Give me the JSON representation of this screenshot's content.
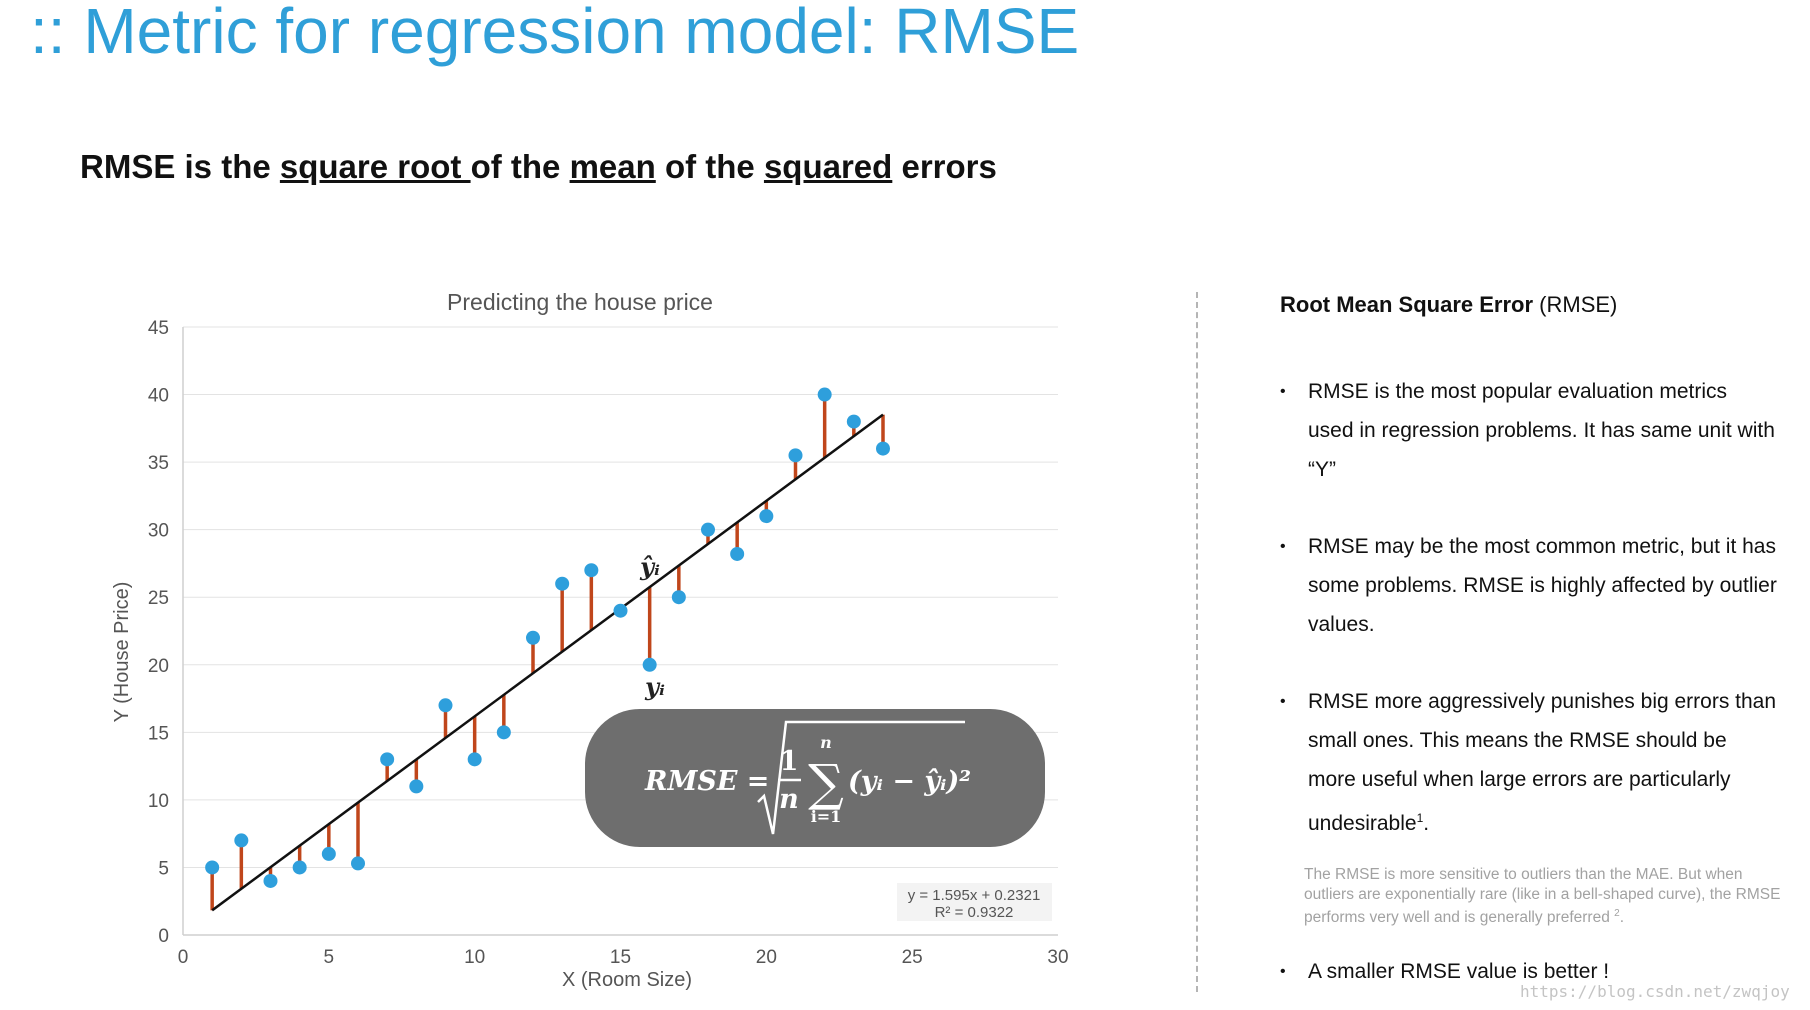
{
  "slide": {
    "title": ":: Metric for regression model: RMSE",
    "subtitle": {
      "part1": "RMSE is the ",
      "square_root": "square root ",
      "part2": "of the ",
      "mean": "mean",
      "part3": " of the ",
      "squared": "squared",
      "part4": " errors"
    }
  },
  "formula": {
    "text": "RMSE = √( (1/n) Σ_{i=1}^{n} (y_i − ŷ_i)² )",
    "lhs": "RMSE =",
    "numerator": "1",
    "denominator": "n",
    "sum_upper": "n",
    "sum_lower": "i=1",
    "body": "(yᵢ − ŷᵢ)²",
    "label_y_hat": "ŷᵢ",
    "label_y": "yᵢ"
  },
  "chart_data": {
    "type": "scatter",
    "title": "Predicting the house price",
    "xlabel": "X (Room Size)",
    "ylabel": "Y (House Price)",
    "xlim": [
      0,
      30
    ],
    "ylim": [
      0,
      45
    ],
    "xticks": [
      0,
      5,
      10,
      15,
      20,
      25,
      30
    ],
    "yticks": [
      0,
      5,
      10,
      15,
      20,
      25,
      30,
      35,
      40,
      45
    ],
    "grid": "horizontal",
    "series": [
      {
        "x": [
          1,
          2,
          3,
          4,
          5,
          6,
          7,
          8,
          9,
          10,
          11,
          12,
          13,
          14,
          15,
          16,
          17,
          18,
          19,
          20,
          21,
          22,
          23,
          24
        ],
        "y": [
          5,
          7,
          4,
          5,
          6,
          5.3,
          13,
          11,
          17,
          13,
          15,
          22,
          26,
          27,
          24,
          20,
          25,
          30,
          28.2,
          31,
          35.5,
          40,
          38,
          36
        ]
      }
    ],
    "trendline": {
      "slope": 1.595,
      "intercept": 0.2321,
      "x_range": [
        1,
        24
      ],
      "equation": "y = 1.595x + 0.2321",
      "r_squared": "R² = 0.9322"
    },
    "colors": {
      "points": "#2e9fdc",
      "residuals": "#c0461b",
      "trendline": "#111111"
    }
  },
  "side_panel": {
    "heading_bold": "Root Mean Square Error",
    "heading_rest": " (RMSE)",
    "bullet_glyph": "•",
    "bullets": [
      {
        "text": "RMSE is the most popular evaluation metrics used in regression problems. It has same unit with “Y”"
      },
      {
        "text": "RMSE may be the most common metric, but it has some problems. RMSE is highly affected by outlier values."
      },
      {
        "text": "RMSE more aggressively punishes big errors than small ones. This means the RMSE should be more useful when large errors are particularly undesirable",
        "sup": "1",
        "tail": "."
      },
      {
        "text": "A smaller RMSE value is better !"
      }
    ],
    "note": "The RMSE is more sensitive to outliers than the MAE. But when outliers are exponentially rare (like in a bell-shaped curve), the RMSE performs very well and is generally preferred",
    "note_sup": "2",
    "note_tail": "."
  },
  "watermark": "https://blog.csdn.net/zwqjoy"
}
